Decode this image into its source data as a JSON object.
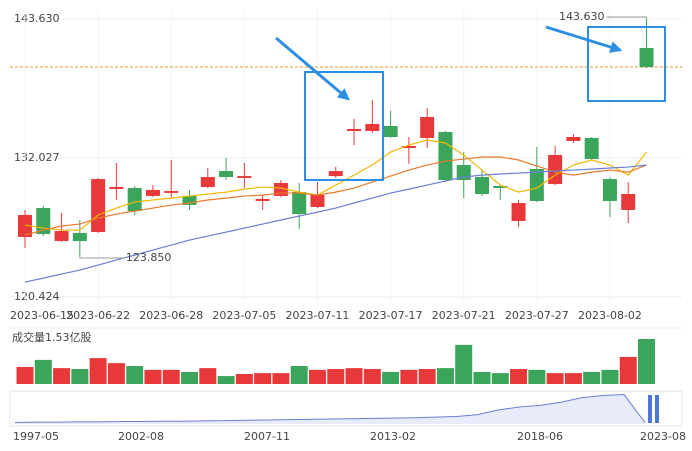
{
  "chart_data": {
    "type": "candlestick",
    "categories": [
      "2023-06-15",
      null,
      null,
      null,
      "2023-06-22",
      null,
      null,
      null,
      "2023-06-28",
      null,
      null,
      null,
      "2023-07-05",
      null,
      null,
      null,
      "2023-07-11",
      null,
      null,
      null,
      "2023-07-17",
      null,
      null,
      null,
      "2023-07-21",
      null,
      null,
      null,
      "2023-07-27",
      null,
      null,
      null,
      "2023-08-02",
      null,
      null
    ],
    "open": [
      125.43,
      127.85,
      125.1,
      125.77,
      125.85,
      129.44,
      129.52,
      128.86,
      129.11,
      128.86,
      129.61,
      130.94,
      130.36,
      128.44,
      128.86,
      129.19,
      127.94,
      130.52,
      134.28,
      134.28,
      134.7,
      132.86,
      133.7,
      134.2,
      131.44,
      130.44,
      129.69,
      126.77,
      131.11,
      129.86,
      133.45,
      133.7,
      130.27,
      127.69,
      141.21
    ],
    "high": [
      127.69,
      128.02,
      127.44,
      126.85,
      130.36,
      131.61,
      129.69,
      129.77,
      131.86,
      129.36,
      131.19,
      132.03,
      131.61,
      128.94,
      130.19,
      129.94,
      130.02,
      131.28,
      135.28,
      136.87,
      135.95,
      133.78,
      136.2,
      134.28,
      132.53,
      131.03,
      129.77,
      128.52,
      132.95,
      133.03,
      134.03,
      133.78,
      130.44,
      130.02,
      143.63
    ],
    "low": [
      124.52,
      125.52,
      125.02,
      123.85,
      125.77,
      128.52,
      127.27,
      128.77,
      128.77,
      127.69,
      129.52,
      130.19,
      129.52,
      127.69,
      128.77,
      126.1,
      127.85,
      130.36,
      133.11,
      134.11,
      133.7,
      131.53,
      132.86,
      130.02,
      128.69,
      128.86,
      128.52,
      126.27,
      128.35,
      129.77,
      133.28,
      131.86,
      127.1,
      126.6,
      139.54
    ],
    "close": [
      127.27,
      125.68,
      125.93,
      125.1,
      130.27,
      129.61,
      127.6,
      129.36,
      129.27,
      128.11,
      130.44,
      130.44,
      130.52,
      128.61,
      129.94,
      127.35,
      128.94,
      130.94,
      134.45,
      134.87,
      133.78,
      133.03,
      135.45,
      130.19,
      130.19,
      129.02,
      129.52,
      128.27,
      128.44,
      132.28,
      133.78,
      131.94,
      128.44,
      129.02,
      139.62
    ],
    "up_color": "#e8393a",
    "down_color": "#3ba55c",
    "series": [
      {
        "color": "#f2b705",
        "values": [
          126.43,
          126.18,
          126.01,
          126.01,
          127.26,
          127.85,
          128.35,
          128.52,
          128.68,
          128.85,
          129.02,
          129.18,
          129.43,
          129.6,
          129.52,
          129.18,
          128.93,
          129.77,
          130.6,
          131.44,
          132.52,
          133.11,
          133.53,
          133.28,
          132.27,
          131.02,
          129.77,
          129.18,
          129.52,
          130.6,
          131.44,
          131.86,
          131.44,
          130.6,
          132.52
        ]
      },
      {
        "color": "#e9792a",
        "values": [
          125.59,
          126.01,
          126.35,
          126.51,
          127.01,
          127.35,
          127.6,
          127.85,
          128.1,
          128.27,
          128.52,
          128.68,
          128.85,
          128.93,
          129.1,
          129.1,
          128.93,
          129.18,
          129.52,
          130.02,
          130.52,
          131.02,
          131.44,
          131.77,
          131.94,
          132.11,
          132.11,
          131.86,
          131.36,
          130.85,
          130.6,
          130.85,
          131.02,
          130.85,
          131.44
        ]
      },
      {
        "color": "#6b7fd7",
        "values": [
          121.67,
          122.0,
          122.34,
          122.67,
          123.09,
          123.51,
          123.92,
          124.34,
          124.76,
          125.18,
          125.51,
          125.84,
          126.18,
          126.51,
          126.85,
          127.18,
          127.51,
          127.85,
          128.27,
          128.68,
          129.1,
          129.43,
          129.77,
          130.1,
          130.44,
          130.6,
          130.69,
          130.77,
          130.85,
          130.94,
          131.02,
          131.1,
          131.19,
          131.27,
          131.44
        ]
      }
    ],
    "ylim": [
      120.424,
      143.63
    ],
    "yticks": [
      {
        "value": 143.63,
        "label": "143.630"
      },
      132.027,
      120.424
    ],
    "grid": true,
    "high_label": {
      "value": 143.63,
      "label": "143.630"
    },
    "low_label": {
      "value": 123.85,
      "label": "123.850"
    },
    "volume_label": "成交量1.53亿股",
    "volume": [
      0.58,
      0.82,
      0.54,
      0.51,
      0.88,
      0.71,
      0.61,
      0.48,
      0.48,
      0.41,
      0.54,
      0.27,
      0.34,
      0.37,
      0.37,
      0.61,
      0.48,
      0.51,
      0.54,
      0.51,
      0.41,
      0.48,
      0.51,
      0.54,
      1.33,
      0.41,
      0.37,
      0.51,
      0.48,
      0.37,
      0.37,
      0.41,
      0.48,
      0.92,
      1.53
    ],
    "overview": {
      "color": "#6b7fd7",
      "ylim": [
        0,
        100
      ],
      "categories": [
        null,
        "1997-05",
        null,
        null,
        null,
        null,
        "2002-08",
        null,
        null,
        null,
        null,
        null,
        "2007-11",
        null,
        null,
        null,
        null,
        null,
        "2013-02",
        null,
        null,
        null,
        null,
        null,
        null,
        "2018-06",
        null,
        null,
        null,
        null,
        "2023-08"
      ],
      "values": [
        5,
        6,
        6,
        7,
        7,
        8,
        8,
        9,
        9,
        10,
        11,
        12,
        13,
        14,
        15,
        16,
        17,
        18,
        19,
        20,
        22,
        24,
        30,
        45,
        55,
        60,
        70,
        85,
        92,
        95,
        5
      ]
    }
  }
}
